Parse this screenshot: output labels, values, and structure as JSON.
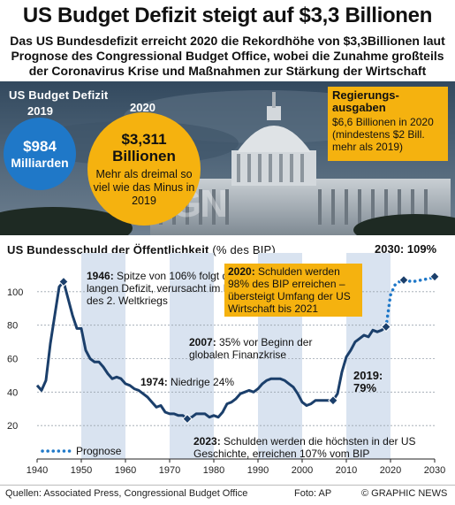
{
  "header": {
    "title": "US Budget Defizit steigt auf $3,3 Billionen",
    "subtitle": "Das US Bundesdefizit erreicht 2020 die Rekordhöhe von $3,3Billionen laut Prognose des Congressional Budget Office, wobei die Zunahme großteils der Coronavirus Krise und Maßnahmen zur Stärkung der Wirtschaft geschuldet ist"
  },
  "deficit": {
    "label": "US Budget Defizit",
    "year_2019": "2019",
    "year_2020": "2020",
    "value_2019_line1": "$984",
    "value_2019_line2": "Milliarden",
    "value_2020_line1": "$3,311",
    "value_2020_line2": "Billionen",
    "note_2020": "Mehr als dreimal so viel wie das Minus in 2019"
  },
  "spending": {
    "heading": "Regierungs-ausgaben",
    "text": "$6,6 Billionen in 2020 (mindestens $2 Bill. mehr als 2019)"
  },
  "watermark": "GN",
  "chart_data": {
    "type": "line",
    "title": "US Bundesschuld der Öffentlichkeit",
    "unit": "(% des BIP)",
    "xlim": [
      1940,
      2030
    ],
    "ylim": [
      0,
      120
    ],
    "xticks": [
      1940,
      1950,
      1960,
      1970,
      1980,
      1990,
      2000,
      2010,
      2020,
      2030
    ],
    "yticks": [
      20,
      40,
      60,
      80,
      100
    ],
    "shaded_decades": [
      [
        1950,
        1960
      ],
      [
        1970,
        1980
      ],
      [
        1990,
        2000
      ],
      [
        2010,
        2020
      ]
    ],
    "colors": {
      "line": "#1b3f6b",
      "forecast": "#1f78c8",
      "shade": "#d9e3f0",
      "highlight": "#f5b20f"
    },
    "series": [
      {
        "style": "solid",
        "x": [
          1940,
          1941,
          1942,
          1943,
          1944,
          1945,
          1946,
          1947,
          1948,
          1949,
          1950,
          1951,
          1952,
          1953,
          1954,
          1955,
          1956,
          1957,
          1958,
          1959,
          1960,
          1961,
          1962,
          1963,
          1964,
          1965,
          1966,
          1967,
          1968,
          1969,
          1970,
          1971,
          1972,
          1973,
          1974,
          1975,
          1976,
          1977,
          1978,
          1979,
          1980,
          1981,
          1982,
          1983,
          1984,
          1985,
          1986,
          1987,
          1988,
          1989,
          1990,
          1991,
          1992,
          1993,
          1994,
          1995,
          1996,
          1997,
          1998,
          1999,
          2000,
          2001,
          2002,
          2003,
          2004,
          2005,
          2006,
          2007,
          2008,
          2009,
          2010,
          2011,
          2012,
          2013,
          2014,
          2015,
          2016,
          2017,
          2018,
          2019
        ],
        "y": [
          44,
          41,
          47,
          69,
          86,
          103,
          106,
          96,
          86,
          78,
          78,
          65,
          60,
          58,
          58,
          55,
          51,
          48,
          49,
          48,
          45,
          44,
          42,
          41,
          39,
          37,
          34,
          31,
          32,
          28,
          27,
          27,
          26,
          26,
          24,
          25,
          27,
          27,
          27,
          25,
          26,
          25,
          28,
          33,
          34,
          36,
          39,
          40,
          41,
          40,
          42,
          45,
          47,
          48,
          48,
          48,
          47,
          45,
          43,
          39,
          34,
          32,
          33,
          35,
          35,
          35,
          35,
          35,
          39,
          52,
          61,
          65,
          70,
          72,
          74,
          73,
          77,
          76,
          77,
          79
        ]
      },
      {
        "name": "Prognose",
        "style": "dotted",
        "x": [
          2019,
          2020,
          2021,
          2022,
          2023,
          2025,
          2027,
          2029,
          2030
        ],
        "y": [
          79,
          98,
          104,
          106,
          107,
          106,
          107,
          108,
          109
        ]
      }
    ],
    "highlight_points": [
      {
        "x": 1946,
        "y": 106
      },
      {
        "x": 1974,
        "y": 24
      },
      {
        "x": 2007,
        "y": 35
      },
      {
        "x": 2019,
        "y": 79
      },
      {
        "x": 2023,
        "y": 107
      },
      {
        "x": 2030,
        "y": 109
      }
    ],
    "legend_label": "Prognose",
    "annotations": {
      "a1946": {
        "bold": "1946:",
        "text": " Spitze von 106% folgt dem langen Defizit, verursacht im Lauf des 2. Weltkriegs"
      },
      "a1974": {
        "bold": "1974:",
        "text": " Niedrige 24%"
      },
      "a2007": {
        "bold": "2007:",
        "text": " 35% vor Beginn der globalen Finanzkrise"
      },
      "a2019": {
        "bold": "2019:",
        "text": " 79%"
      },
      "a2020": {
        "bold": "2020:",
        "text": " Schulden werden 98% des BIP erreichen – übersteigt Umfang der US Wirtschaft bis 2021"
      },
      "a2023": {
        "bold": "2023:",
        "text": " Schulden werden die höchsten in der US Geschichte, erreichen 107% vom BIP"
      },
      "a2030": {
        "bold": "2030:",
        "text": " 109%"
      }
    }
  },
  "footer": {
    "sources": "Quellen: Associated Press, Congressional Budget Office",
    "photo": "Foto: AP",
    "brand": "© GRAPHIC NEWS"
  }
}
